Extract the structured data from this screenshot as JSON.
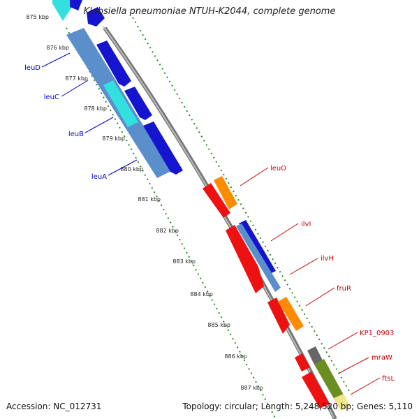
{
  "title": "Klebsiella pneumoniae NTUH-K2044, complete genome",
  "footer": {
    "accession": "Accession: NC_012731",
    "summary": "Topology: circular; Length: 5,248,520 bp; Genes: 5,110"
  },
  "ticks": [
    "875 kbp",
    "876 kbp",
    "877 kbp",
    "878 kbp",
    "879 kbp",
    "880 kbp",
    "881 kbp",
    "882 kbp",
    "883 kbp",
    "884 kbp",
    "885 kbp",
    "886 kbp",
    "887 kbp"
  ],
  "genes_left": [
    "leuD",
    "leuC",
    "leuB",
    "leuA"
  ],
  "genes_right": [
    "leuO",
    "ilvI",
    "ilvH",
    "fruR",
    "KP1_0903",
    "mraW",
    "ftsL"
  ],
  "colors": {
    "minus_strand_label": "#0000cc",
    "plus_strand_label": "#cc0000",
    "tick_green": "#228b22",
    "backbone": "#888888"
  }
}
